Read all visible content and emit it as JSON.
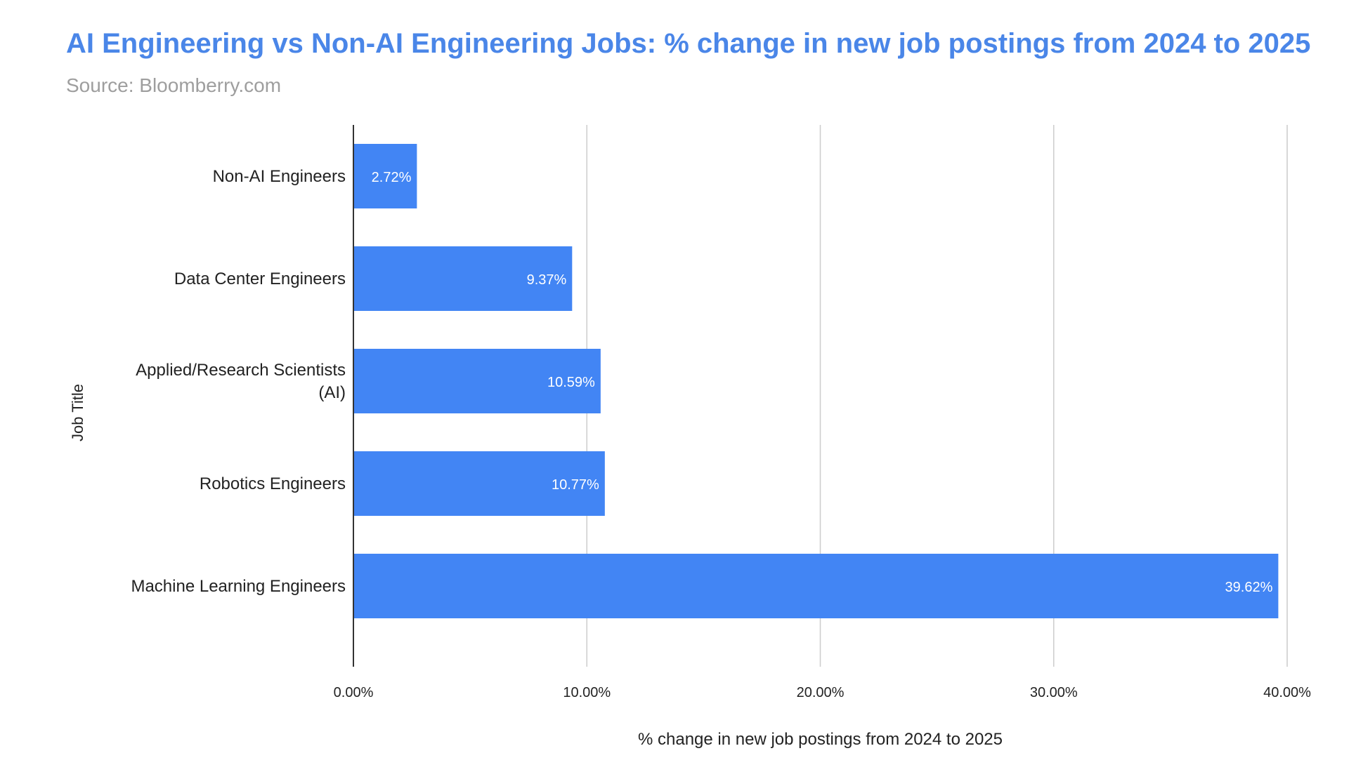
{
  "colors": {
    "title": "#4a86e8",
    "subtitle": "#9e9e9e",
    "bar": "#4285f4",
    "grid": "#cccccc",
    "axis": "#333333",
    "text": "#222222",
    "data_label": "#ffffff"
  },
  "chart_data": {
    "type": "bar",
    "orientation": "horizontal",
    "title": "AI Engineering vs Non-AI Engineering Jobs: % change in new job postings from 2024 to 2025",
    "subtitle": "Source: Bloomberry.com",
    "xlabel": "% change in new job postings from 2024 to 2025",
    "ylabel": "Job Title",
    "categories": [
      [
        "Non-AI Engineers"
      ],
      [
        "Data Center Engineers"
      ],
      [
        "Applied/Research Scientists",
        "(AI)"
      ],
      [
        "Robotics Engineers"
      ],
      [
        "Machine Learning Engineers"
      ]
    ],
    "values": [
      2.72,
      9.37,
      10.59,
      10.77,
      39.62
    ],
    "data_labels": [
      "2.72%",
      "9.37%",
      "10.59%",
      "10.77%",
      "39.62%"
    ],
    "xlim": [
      0,
      40
    ],
    "xticks": [
      0,
      10,
      20,
      30,
      40
    ],
    "xtick_labels": [
      "0.00%",
      "10.00%",
      "20.00%",
      "30.00%",
      "40.00%"
    ],
    "grid": true,
    "legend": "none"
  }
}
